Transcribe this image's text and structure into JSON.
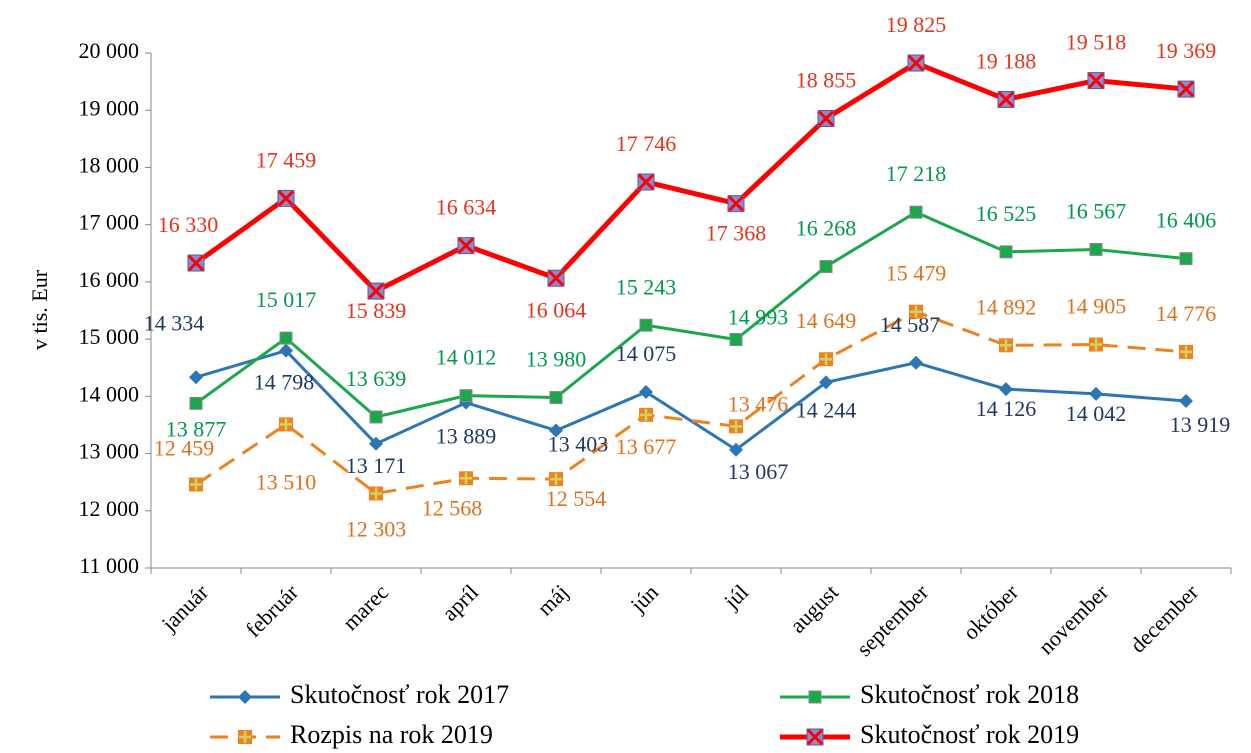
{
  "chart_data": {
    "type": "line",
    "y_label": "v tis. Eur",
    "categories": [
      "január",
      "február",
      "marec",
      "apríl",
      "máj",
      "jún",
      "júl",
      "august",
      "september",
      "október",
      "november",
      "december"
    ],
    "ylim": [
      11000,
      20000
    ],
    "yticks": [
      {
        "value": 11000,
        "label": "11 000"
      },
      {
        "value": 12000,
        "label": "12 000"
      },
      {
        "value": 13000,
        "label": "13 000"
      },
      {
        "value": 14000,
        "label": "14 000"
      },
      {
        "value": 15000,
        "label": "15 000"
      },
      {
        "value": 16000,
        "label": "16 000"
      },
      {
        "value": 17000,
        "label": "17 000"
      },
      {
        "value": 18000,
        "label": "18 000"
      },
      {
        "value": 19000,
        "label": "19 000"
      },
      {
        "value": 20000,
        "label": "20 000"
      }
    ],
    "series": [
      {
        "name": "Skutočnosť rok 2017",
        "color": "#2e75b6",
        "label_color": "#203864",
        "marker": "diamond",
        "dashed": false,
        "values": [
          14334,
          14798,
          13171,
          13889,
          13403,
          14075,
          13067,
          14244,
          14587,
          14126,
          14042,
          13919
        ],
        "value_labels": [
          "14 334",
          "14 798",
          "13 171",
          "13 889",
          "13 403",
          "14 075",
          "13 067",
          "14 244",
          "14 587",
          "14 126",
          "14 042",
          "13 919"
        ]
      },
      {
        "name": "Skutočnosť rok 2018",
        "color": "#1aa84a",
        "label_color": "#00994a",
        "marker": "square",
        "dashed": false,
        "values": [
          13877,
          15017,
          13639,
          14012,
          13980,
          15243,
          14993,
          16268,
          17218,
          16525,
          16567,
          16406
        ],
        "value_labels": [
          "13 877",
          "15 017",
          "13 639",
          "14 012",
          "13 980",
          "15 243",
          "14 993",
          "16 268",
          "17 218",
          "16 525",
          "16 567",
          "16 406"
        ]
      },
      {
        "name": "Rozpis na rok 2019",
        "color": "#f0821e",
        "label_color": "#e0701a",
        "marker": "plus",
        "dashed": true,
        "values": [
          12459,
          13510,
          12303,
          12568,
          12554,
          13677,
          13476,
          14649,
          15479,
          14892,
          14905,
          14776
        ],
        "value_labels": [
          "12 459",
          "13 510",
          "12 303",
          "12 568",
          "12 554",
          "13 677",
          "13 476",
          "14 649",
          "15 479",
          "14 892",
          "14 905",
          "14 776"
        ]
      },
      {
        "name": "Skutočnosť rok 2019",
        "color": "#ff0000",
        "label_color": "#e8331c",
        "marker": "x",
        "dashed": false,
        "values": [
          16330,
          17459,
          15839,
          16634,
          16064,
          17746,
          17368,
          18855,
          19825,
          19188,
          19518,
          19369
        ],
        "value_labels": [
          "16 330",
          "17 459",
          "15 839",
          "16 634",
          "16 064",
          "17 746",
          "17 368",
          "18 855",
          "19 825",
          "19 188",
          "19 518",
          "19 369"
        ]
      }
    ]
  }
}
